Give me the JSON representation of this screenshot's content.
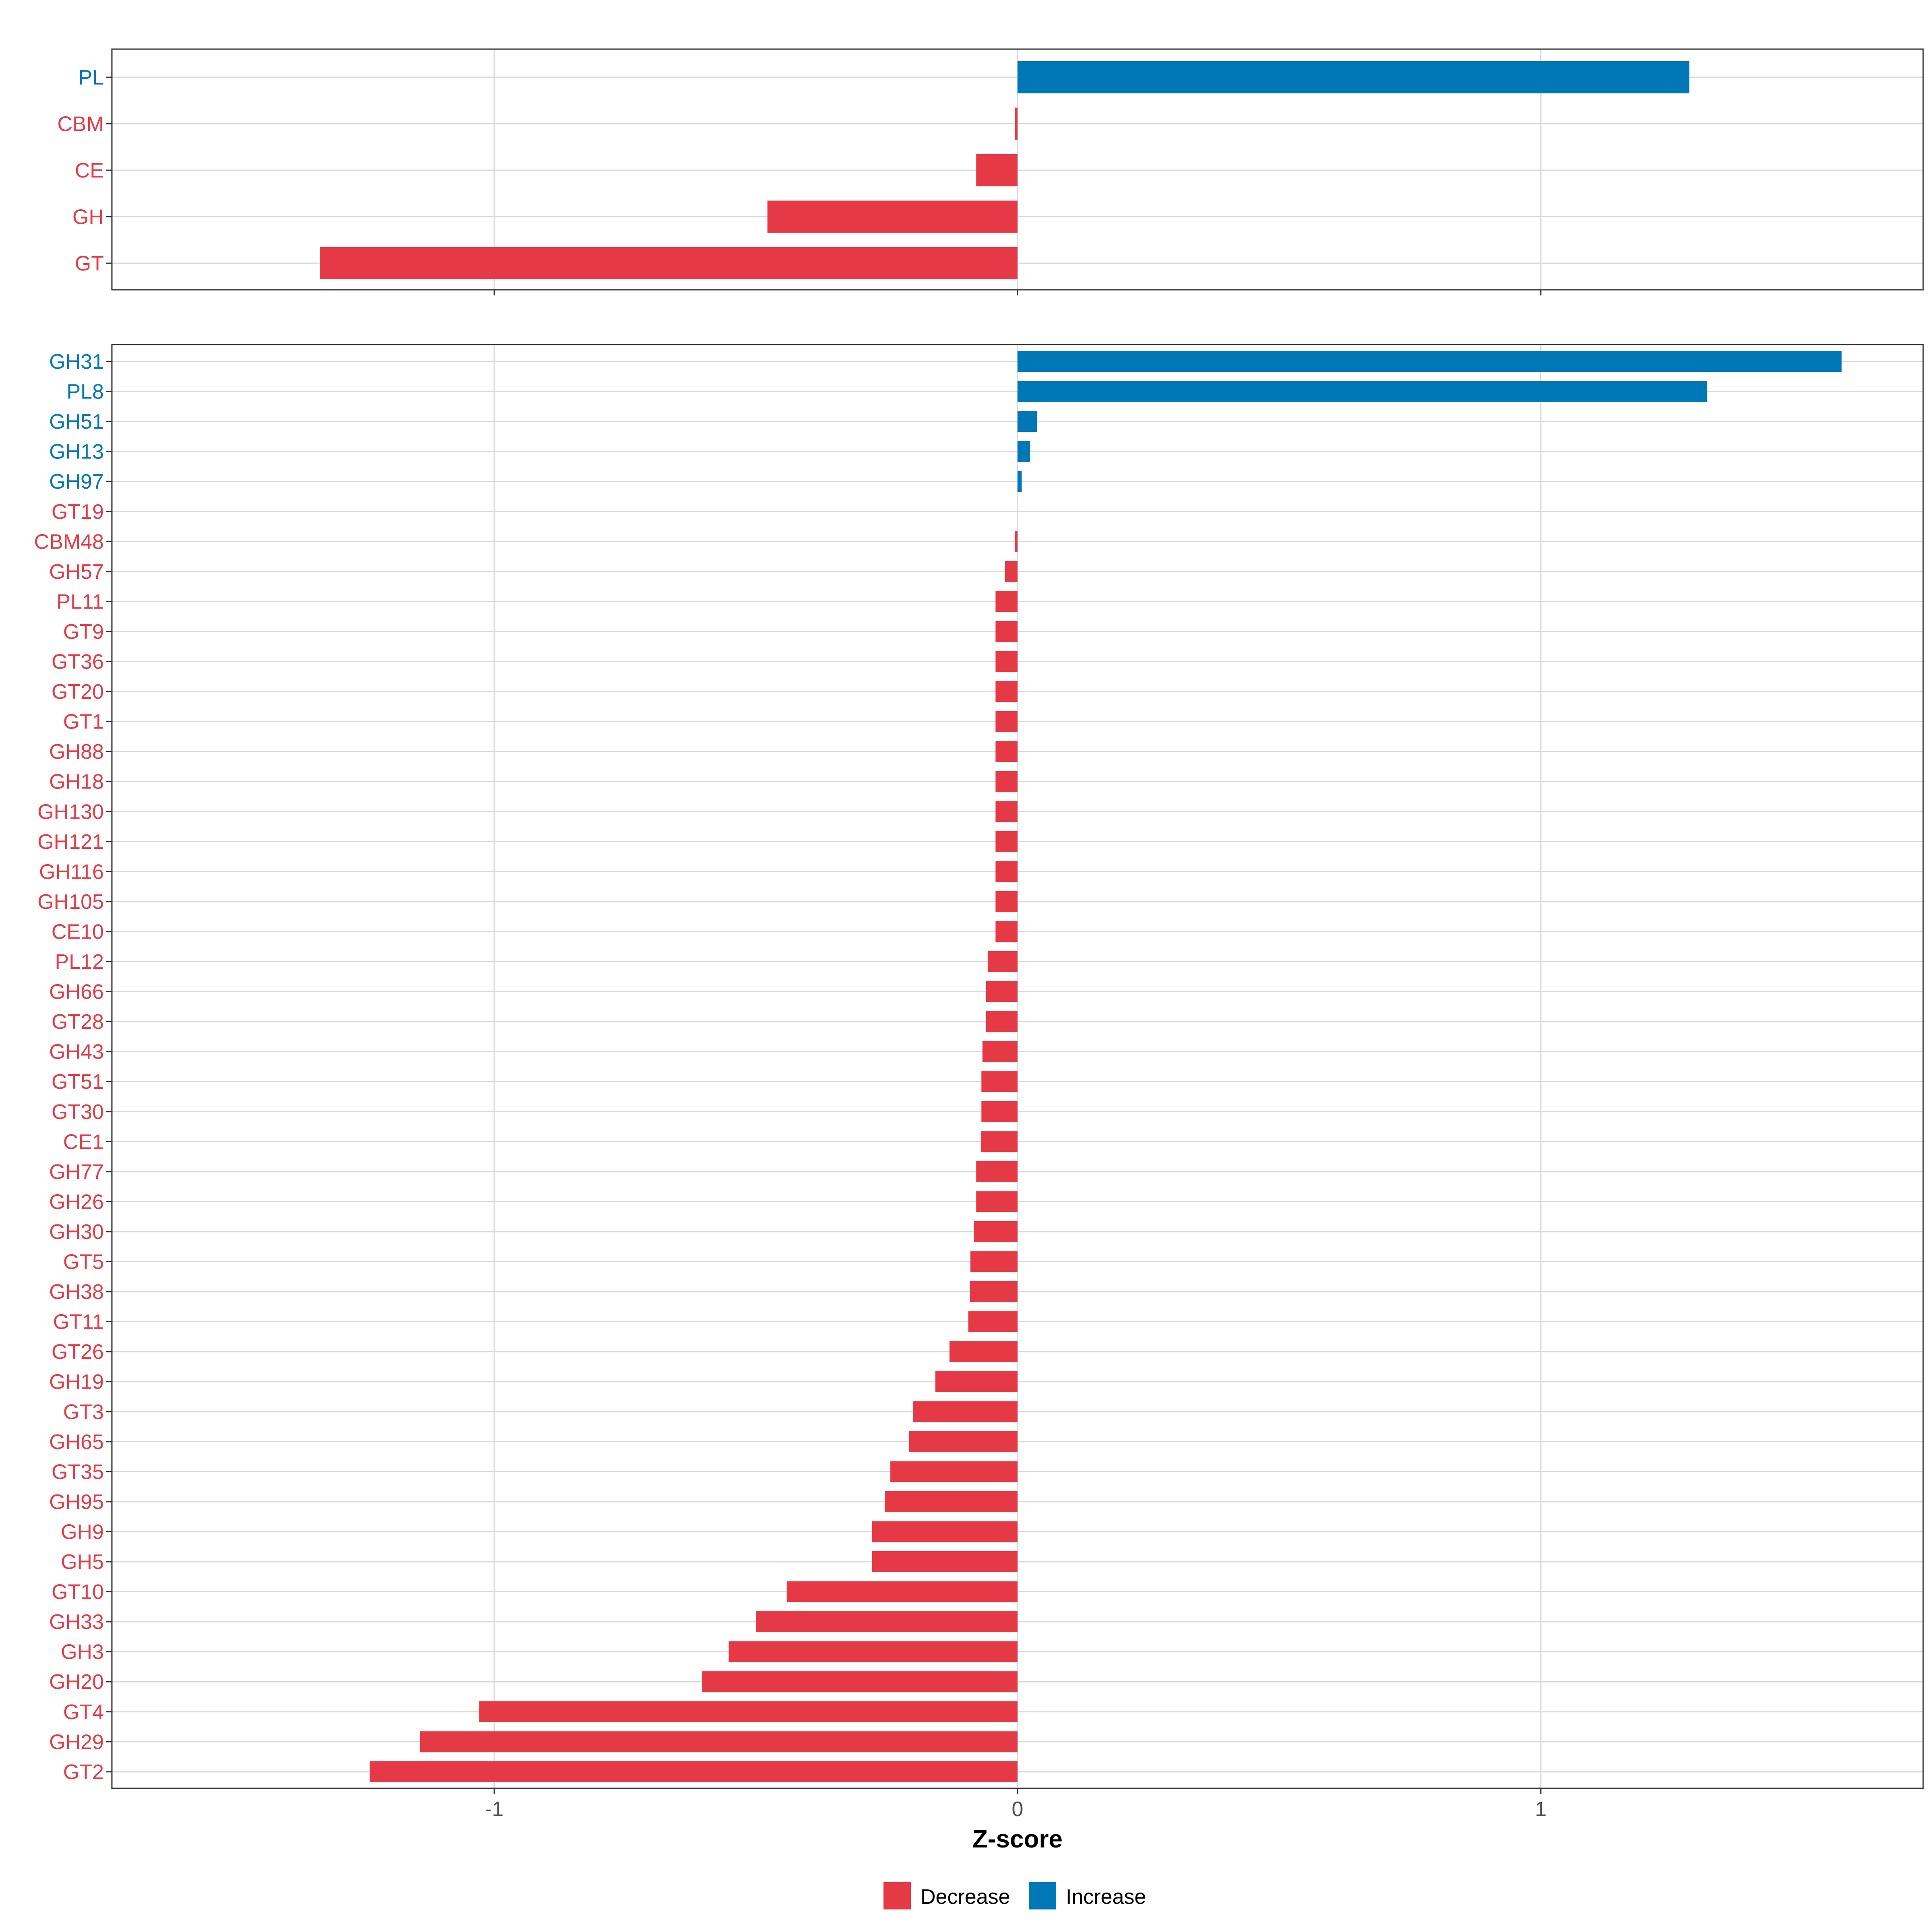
{
  "chart_data": {
    "type": "bar",
    "orientation": "horizontal",
    "xlabel": "Z-score",
    "xlim": [
      -1.73,
      1.73
    ],
    "xticks": [
      -1,
      0,
      1
    ],
    "xtick_labels": [
      "-1",
      "0",
      "1"
    ],
    "legend": {
      "placement": "bottom",
      "entries": [
        {
          "label": "Decrease",
          "color": "#E63946"
        },
        {
          "label": "Increase",
          "color": "#0077B6"
        }
      ]
    },
    "colors": {
      "Decrease": "#E63946",
      "Increase": "#0077B6"
    },
    "panels": [
      {
        "name": "families",
        "categories": [
          "PL",
          "CBM",
          "CE",
          "GH",
          "GT"
        ],
        "values": [
          1.284,
          -0.005,
          -0.079,
          -0.478,
          -1.333
        ]
      },
      {
        "name": "subfamilies",
        "categories": [
          "GH31",
          "PL8",
          "GH51",
          "GH13",
          "GH97",
          "GT19",
          "CBM48",
          "GH57",
          "PL11",
          "GT9",
          "GT36",
          "GT20",
          "GT1",
          "GH88",
          "GH18",
          "GH130",
          "GH121",
          "GH116",
          "GH105",
          "CE10",
          "PL12",
          "GH66",
          "GT28",
          "GH43",
          "GT51",
          "GT30",
          "CE1",
          "GH77",
          "GH26",
          "GH30",
          "GT5",
          "GH38",
          "GT11",
          "GT26",
          "GH19",
          "GT3",
          "GH65",
          "GT35",
          "GH95",
          "GH9",
          "GH5",
          "GT10",
          "GH33",
          "GH3",
          "GH20",
          "GT4",
          "GH29",
          "GT2"
        ],
        "values": [
          1.575,
          1.318,
          0.037,
          0.024,
          0.008,
          0.0,
          -0.005,
          -0.024,
          -0.042,
          -0.042,
          -0.042,
          -0.042,
          -0.042,
          -0.042,
          -0.042,
          -0.042,
          -0.042,
          -0.042,
          -0.042,
          -0.042,
          -0.057,
          -0.06,
          -0.06,
          -0.067,
          -0.069,
          -0.069,
          -0.07,
          -0.079,
          -0.079,
          -0.083,
          -0.09,
          -0.091,
          -0.094,
          -0.13,
          -0.157,
          -0.2,
          -0.207,
          -0.243,
          -0.253,
          -0.278,
          -0.278,
          -0.441,
          -0.5,
          -0.552,
          -0.603,
          -1.029,
          -1.142,
          -1.238
        ]
      }
    ]
  }
}
